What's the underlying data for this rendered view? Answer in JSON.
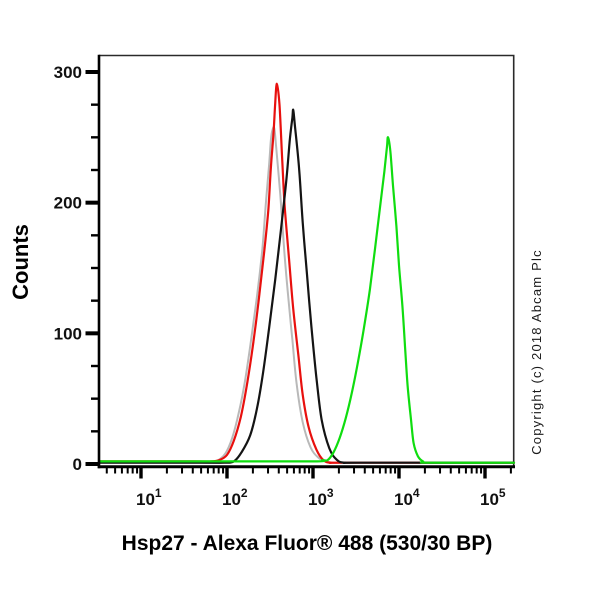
{
  "figure": {
    "title": "Hsp27 - Alexa Fluor® 488 (530/30 BP)",
    "copyright": "Copyright (c) 2018 Abcam Plc",
    "background": "#ffffff"
  },
  "axes": {
    "x": {
      "scale": "log10",
      "base_label": "10",
      "decades": [
        1,
        2,
        3,
        4,
        5
      ],
      "minor_multipliers": [
        2,
        3,
        4,
        5,
        6,
        7,
        8,
        9
      ],
      "log_range": [
        0.512,
        5.337
      ]
    },
    "y": {
      "label": "Counts",
      "major_ticks": [
        0,
        100,
        200,
        300
      ],
      "minor_step": 25,
      "range": [
        0,
        313
      ]
    }
  },
  "chart_data": {
    "type": "line",
    "title": "Hsp27 - Alexa Fluor® 488 (530/30 BP)",
    "xlabel": "Hsp27 - Alexa Fluor® 488 (530/30 BP)",
    "ylabel": "Counts",
    "x_scale": "log10 fluorescence intensity",
    "x_log_range": [
      0.512,
      5.337
    ],
    "ylim": [
      0,
      313
    ],
    "grid": false,
    "legend": "none",
    "series": [
      {
        "name": "gray-control",
        "color": "#b9b9b9",
        "stroke_width": 2.0,
        "peak_x": 350,
        "peak_counts": 257,
        "points_log10x_counts": [
          [
            0.512,
            1
          ],
          [
            1.55,
            1
          ],
          [
            1.76,
            1
          ],
          [
            1.87,
            2
          ],
          [
            1.98,
            8
          ],
          [
            2.06,
            20
          ],
          [
            2.14,
            40
          ],
          [
            2.21,
            64
          ],
          [
            2.28,
            95
          ],
          [
            2.35,
            129
          ],
          [
            2.41,
            164
          ],
          [
            2.45,
            198
          ],
          [
            2.49,
            229
          ],
          [
            2.51,
            248
          ],
          [
            2.53,
            256
          ],
          [
            2.55,
            257
          ],
          [
            2.57,
            244
          ],
          [
            2.62,
            206
          ],
          [
            2.66,
            168
          ],
          [
            2.71,
            129
          ],
          [
            2.76,
            95
          ],
          [
            2.81,
            61
          ],
          [
            2.88,
            32
          ],
          [
            2.97,
            13
          ],
          [
            3.06,
            5
          ],
          [
            3.15,
            2
          ],
          [
            3.24,
            1
          ],
          [
            3.45,
            1
          ],
          [
            5.337,
            1
          ]
        ]
      },
      {
        "name": "red",
        "color": "#e8100e",
        "stroke_width": 2.2,
        "peak_x": 380,
        "peak_counts": 291,
        "points_log10x_counts": [
          [
            0.512,
            2
          ],
          [
            1.6,
            2
          ],
          [
            1.81,
            2
          ],
          [
            1.91,
            3
          ],
          [
            2.0,
            7
          ],
          [
            2.08,
            18
          ],
          [
            2.16,
            36
          ],
          [
            2.23,
            60
          ],
          [
            2.3,
            90
          ],
          [
            2.37,
            126
          ],
          [
            2.43,
            161
          ],
          [
            2.48,
            194
          ],
          [
            2.51,
            227
          ],
          [
            2.54,
            252
          ],
          [
            2.56,
            276
          ],
          [
            2.58,
            291
          ],
          [
            2.61,
            275
          ],
          [
            2.64,
            236
          ],
          [
            2.67,
            198
          ],
          [
            2.72,
            158
          ],
          [
            2.77,
            119
          ],
          [
            2.83,
            83
          ],
          [
            2.88,
            53
          ],
          [
            2.95,
            28
          ],
          [
            3.04,
            11
          ],
          [
            3.12,
            3
          ],
          [
            3.21,
            1
          ],
          [
            3.4,
            1
          ],
          [
            5.337,
            1
          ]
        ]
      },
      {
        "name": "black",
        "color": "#141414",
        "stroke_width": 2.2,
        "peak_x": 590,
        "peak_counts": 271,
        "points_log10x_counts": [
          [
            0.512,
            1
          ],
          [
            1.7,
            1
          ],
          [
            1.97,
            1
          ],
          [
            2.08,
            2
          ],
          [
            2.17,
            9
          ],
          [
            2.27,
            22
          ],
          [
            2.35,
            43
          ],
          [
            2.42,
            70
          ],
          [
            2.49,
            104
          ],
          [
            2.56,
            141
          ],
          [
            2.63,
            181
          ],
          [
            2.69,
            217
          ],
          [
            2.73,
            248
          ],
          [
            2.76,
            265
          ],
          [
            2.77,
            271
          ],
          [
            2.79,
            259
          ],
          [
            2.84,
            225
          ],
          [
            2.88,
            185
          ],
          [
            2.93,
            145
          ],
          [
            2.98,
            106
          ],
          [
            3.04,
            66
          ],
          [
            3.1,
            34
          ],
          [
            3.19,
            12
          ],
          [
            3.28,
            3
          ],
          [
            3.37,
            1
          ],
          [
            3.55,
            1
          ],
          [
            5.337,
            1
          ]
        ]
      },
      {
        "name": "green",
        "color": "#0fdd0f",
        "stroke_width": 2.2,
        "peak_x": 7400,
        "peak_counts": 250,
        "points_log10x_counts": [
          [
            0.512,
            2
          ],
          [
            2.2,
            2
          ],
          [
            3.05,
            2
          ],
          [
            3.11,
            3
          ],
          [
            3.17,
            3
          ],
          [
            3.24,
            9
          ],
          [
            3.31,
            20
          ],
          [
            3.38,
            35
          ],
          [
            3.45,
            54
          ],
          [
            3.52,
            77
          ],
          [
            3.59,
            103
          ],
          [
            3.66,
            133
          ],
          [
            3.72,
            164
          ],
          [
            3.78,
            197
          ],
          [
            3.83,
            224
          ],
          [
            3.86,
            243
          ],
          [
            3.872,
            250
          ],
          [
            3.9,
            239
          ],
          [
            3.93,
            213
          ],
          [
            3.97,
            182
          ],
          [
            4.0,
            152
          ],
          [
            4.04,
            121
          ],
          [
            4.07,
            90
          ],
          [
            4.1,
            60
          ],
          [
            4.14,
            34
          ],
          [
            4.17,
            16
          ],
          [
            4.22,
            6
          ],
          [
            4.28,
            2
          ],
          [
            4.35,
            1
          ],
          [
            5.337,
            1
          ]
        ]
      }
    ]
  }
}
